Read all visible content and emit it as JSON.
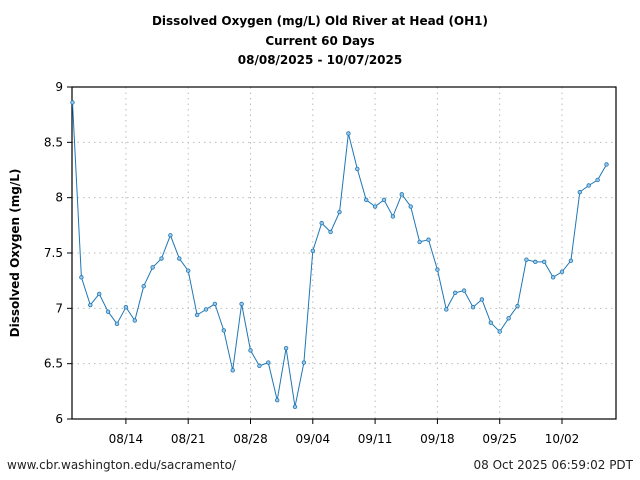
{
  "chart_data": {
    "type": "line",
    "title": [
      "Dissolved Oxygen (mg/L) Old River at Head (OH1)",
      "Current 60 Days",
      "08/08/2025 - 10/07/2025"
    ],
    "xlabel": "",
    "ylabel": "Dissolved Oxygen (mg/L)",
    "ylim": [
      6,
      9
    ],
    "yticks": [
      6,
      6.5,
      7,
      7.5,
      8,
      8.5,
      9
    ],
    "ytick_labels": [
      "6",
      "6.5",
      "7",
      "7.5",
      "8",
      "8.5",
      "9"
    ],
    "xstart": "08/08/2025",
    "xend": "10/07/2025",
    "xtick_days": [
      6,
      13,
      20,
      27,
      34,
      41,
      48,
      55
    ],
    "xtick_labels": [
      "08/14",
      "08/21",
      "08/28",
      "09/04",
      "09/11",
      "09/18",
      "09/25",
      "10/02"
    ],
    "grid": true,
    "series": [
      {
        "name": "Dissolved Oxygen",
        "color": "#1f77b4",
        "values": [
          8.86,
          7.28,
          7.03,
          7.13,
          6.97,
          6.86,
          7.01,
          6.89,
          7.2,
          7.37,
          7.45,
          7.66,
          7.45,
          7.34,
          6.94,
          6.99,
          7.04,
          6.8,
          6.44,
          7.04,
          6.62,
          6.48,
          6.51,
          6.17,
          6.64,
          6.11,
          6.51,
          7.52,
          7.77,
          7.69,
          7.87,
          8.58,
          8.26,
          7.98,
          7.92,
          7.98,
          7.83,
          8.03,
          7.92,
          7.6,
          7.62,
          7.35,
          6.99,
          7.14,
          7.16,
          7.01,
          7.08,
          6.87,
          6.79,
          6.91,
          7.02,
          7.44,
          7.42,
          7.42,
          7.28,
          7.33,
          7.43,
          8.05,
          8.11,
          8.16,
          8.3
        ]
      }
    ]
  },
  "footer": {
    "url": "www.cbr.washington.edu/sacramento/",
    "timestamp": "08 Oct 2025 06:59:02 PDT"
  }
}
